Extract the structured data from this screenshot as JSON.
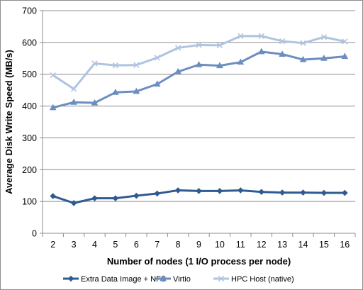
{
  "chart_data": {
    "type": "line",
    "title": "",
    "xlabel": "Number of nodes (1 I/O process per node)",
    "ylabel": "Average Disk Write Speed (MB/s)",
    "categories": [
      "2",
      "3",
      "4",
      "5",
      "6",
      "7",
      "8",
      "9",
      "10",
      "11",
      "12",
      "13",
      "14",
      "15",
      "16"
    ],
    "ylim": [
      0,
      700
    ],
    "yticks": [
      "0",
      "100",
      "200",
      "300",
      "400",
      "500",
      "600",
      "700"
    ],
    "grid": "horizontal",
    "legend_position": "bottom",
    "series": [
      {
        "name": "Extra Data Image + NFS",
        "color": "#2E5B91",
        "marker": "diamond",
        "values": [
          117,
          95,
          110,
          110,
          118,
          125,
          135,
          133,
          133,
          135,
          130,
          128,
          128,
          127,
          127
        ]
      },
      {
        "name": "Virtio",
        "color": "#6C8EBF",
        "marker": "triangle",
        "values": [
          395,
          412,
          410,
          443,
          446,
          469,
          508,
          530,
          527,
          538,
          571,
          563,
          546,
          550,
          556
        ]
      },
      {
        "name": "HPC Host (native)",
        "color": "#AFC4E0",
        "marker": "cross",
        "values": [
          497,
          454,
          534,
          528,
          529,
          552,
          583,
          592,
          591,
          620,
          620,
          604,
          598,
          617,
          603
        ]
      }
    ]
  }
}
